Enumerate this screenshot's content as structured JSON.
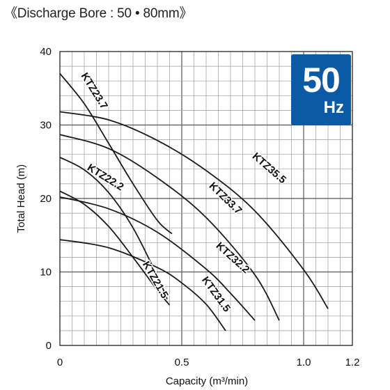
{
  "heading": "《Discharge Bore : 50 • 80mm》",
  "badge": {
    "frequency": "50",
    "unit": "Hz",
    "color": "#0a5aa6"
  },
  "chart_data": {
    "type": "line",
    "xlabel": "Capacity (m³/min)",
    "ylabel": "Total Head (m)",
    "xlim": [
      0,
      1.2
    ],
    "ylim": [
      0,
      40
    ],
    "x_ticks": [
      0,
      0.5,
      1.0,
      1.2
    ],
    "x_tick_labels": [
      "0",
      "0.5",
      "1.0",
      "1.2"
    ],
    "y_ticks": [
      0,
      10,
      20,
      30,
      40
    ],
    "y_tick_labels": [
      "0",
      "10",
      "20",
      "30",
      "40"
    ],
    "grid": true,
    "line_color": "#1a1a1a",
    "series": [
      {
        "name": "KTZ23.7",
        "x": [
          0,
          0.1,
          0.2,
          0.3,
          0.4,
          0.46
        ],
        "y": [
          37,
          32.9,
          27.5,
          22,
          17,
          15.2
        ]
      },
      {
        "name": "KTZ22.2",
        "x": [
          0,
          0.1,
          0.2,
          0.3,
          0.4,
          0.44
        ],
        "y": [
          25.6,
          23.9,
          20.8,
          16,
          9.4,
          6.3
        ]
      },
      {
        "name": "KTZ21.5",
        "x": [
          0,
          0.1,
          0.2,
          0.3,
          0.4,
          0.45
        ],
        "y": [
          21,
          19.2,
          16.2,
          12,
          7.5,
          5.5
        ]
      },
      {
        "name": "KTZ35.5",
        "x": [
          0,
          0.2,
          0.4,
          0.6,
          0.8,
          1.0,
          1.1
        ],
        "y": [
          31.8,
          30.7,
          27.9,
          23.8,
          18.3,
          10.3,
          5.0
        ]
      },
      {
        "name": "KTZ33.7",
        "x": [
          0,
          0.2,
          0.4,
          0.6,
          0.8,
          0.9
        ],
        "y": [
          28.7,
          26.8,
          22.8,
          17.4,
          9.6,
          3.4
        ]
      },
      {
        "name": "KTZ32.2",
        "x": [
          0,
          0.2,
          0.4,
          0.6,
          0.7,
          0.8
        ],
        "y": [
          20.2,
          18.6,
          15.4,
          10.4,
          7.1,
          3.4
        ]
      },
      {
        "name": "KTZ31.5",
        "x": [
          0,
          0.2,
          0.4,
          0.5,
          0.6,
          0.68
        ],
        "y": [
          14.4,
          13.3,
          10.6,
          8.5,
          5.6,
          2.0
        ]
      }
    ],
    "labels": [
      {
        "series": "KTZ23.7",
        "x": 0.13,
        "y": 34.4,
        "angle": 58
      },
      {
        "series": "KTZ22.2",
        "x": 0.18,
        "y": 22.5,
        "angle": 32
      },
      {
        "series": "KTZ21.5",
        "x": 0.38,
        "y": 8.7,
        "angle": 60
      },
      {
        "series": "KTZ35.5",
        "x": 0.85,
        "y": 23.8,
        "angle": 41
      },
      {
        "series": "KTZ33.7",
        "x": 0.67,
        "y": 19.7,
        "angle": 44
      },
      {
        "series": "KTZ32.2",
        "x": 0.7,
        "y": 11.6,
        "angle": 42
      },
      {
        "series": "KTZ31.5",
        "x": 0.63,
        "y": 6.7,
        "angle": 54
      }
    ]
  }
}
